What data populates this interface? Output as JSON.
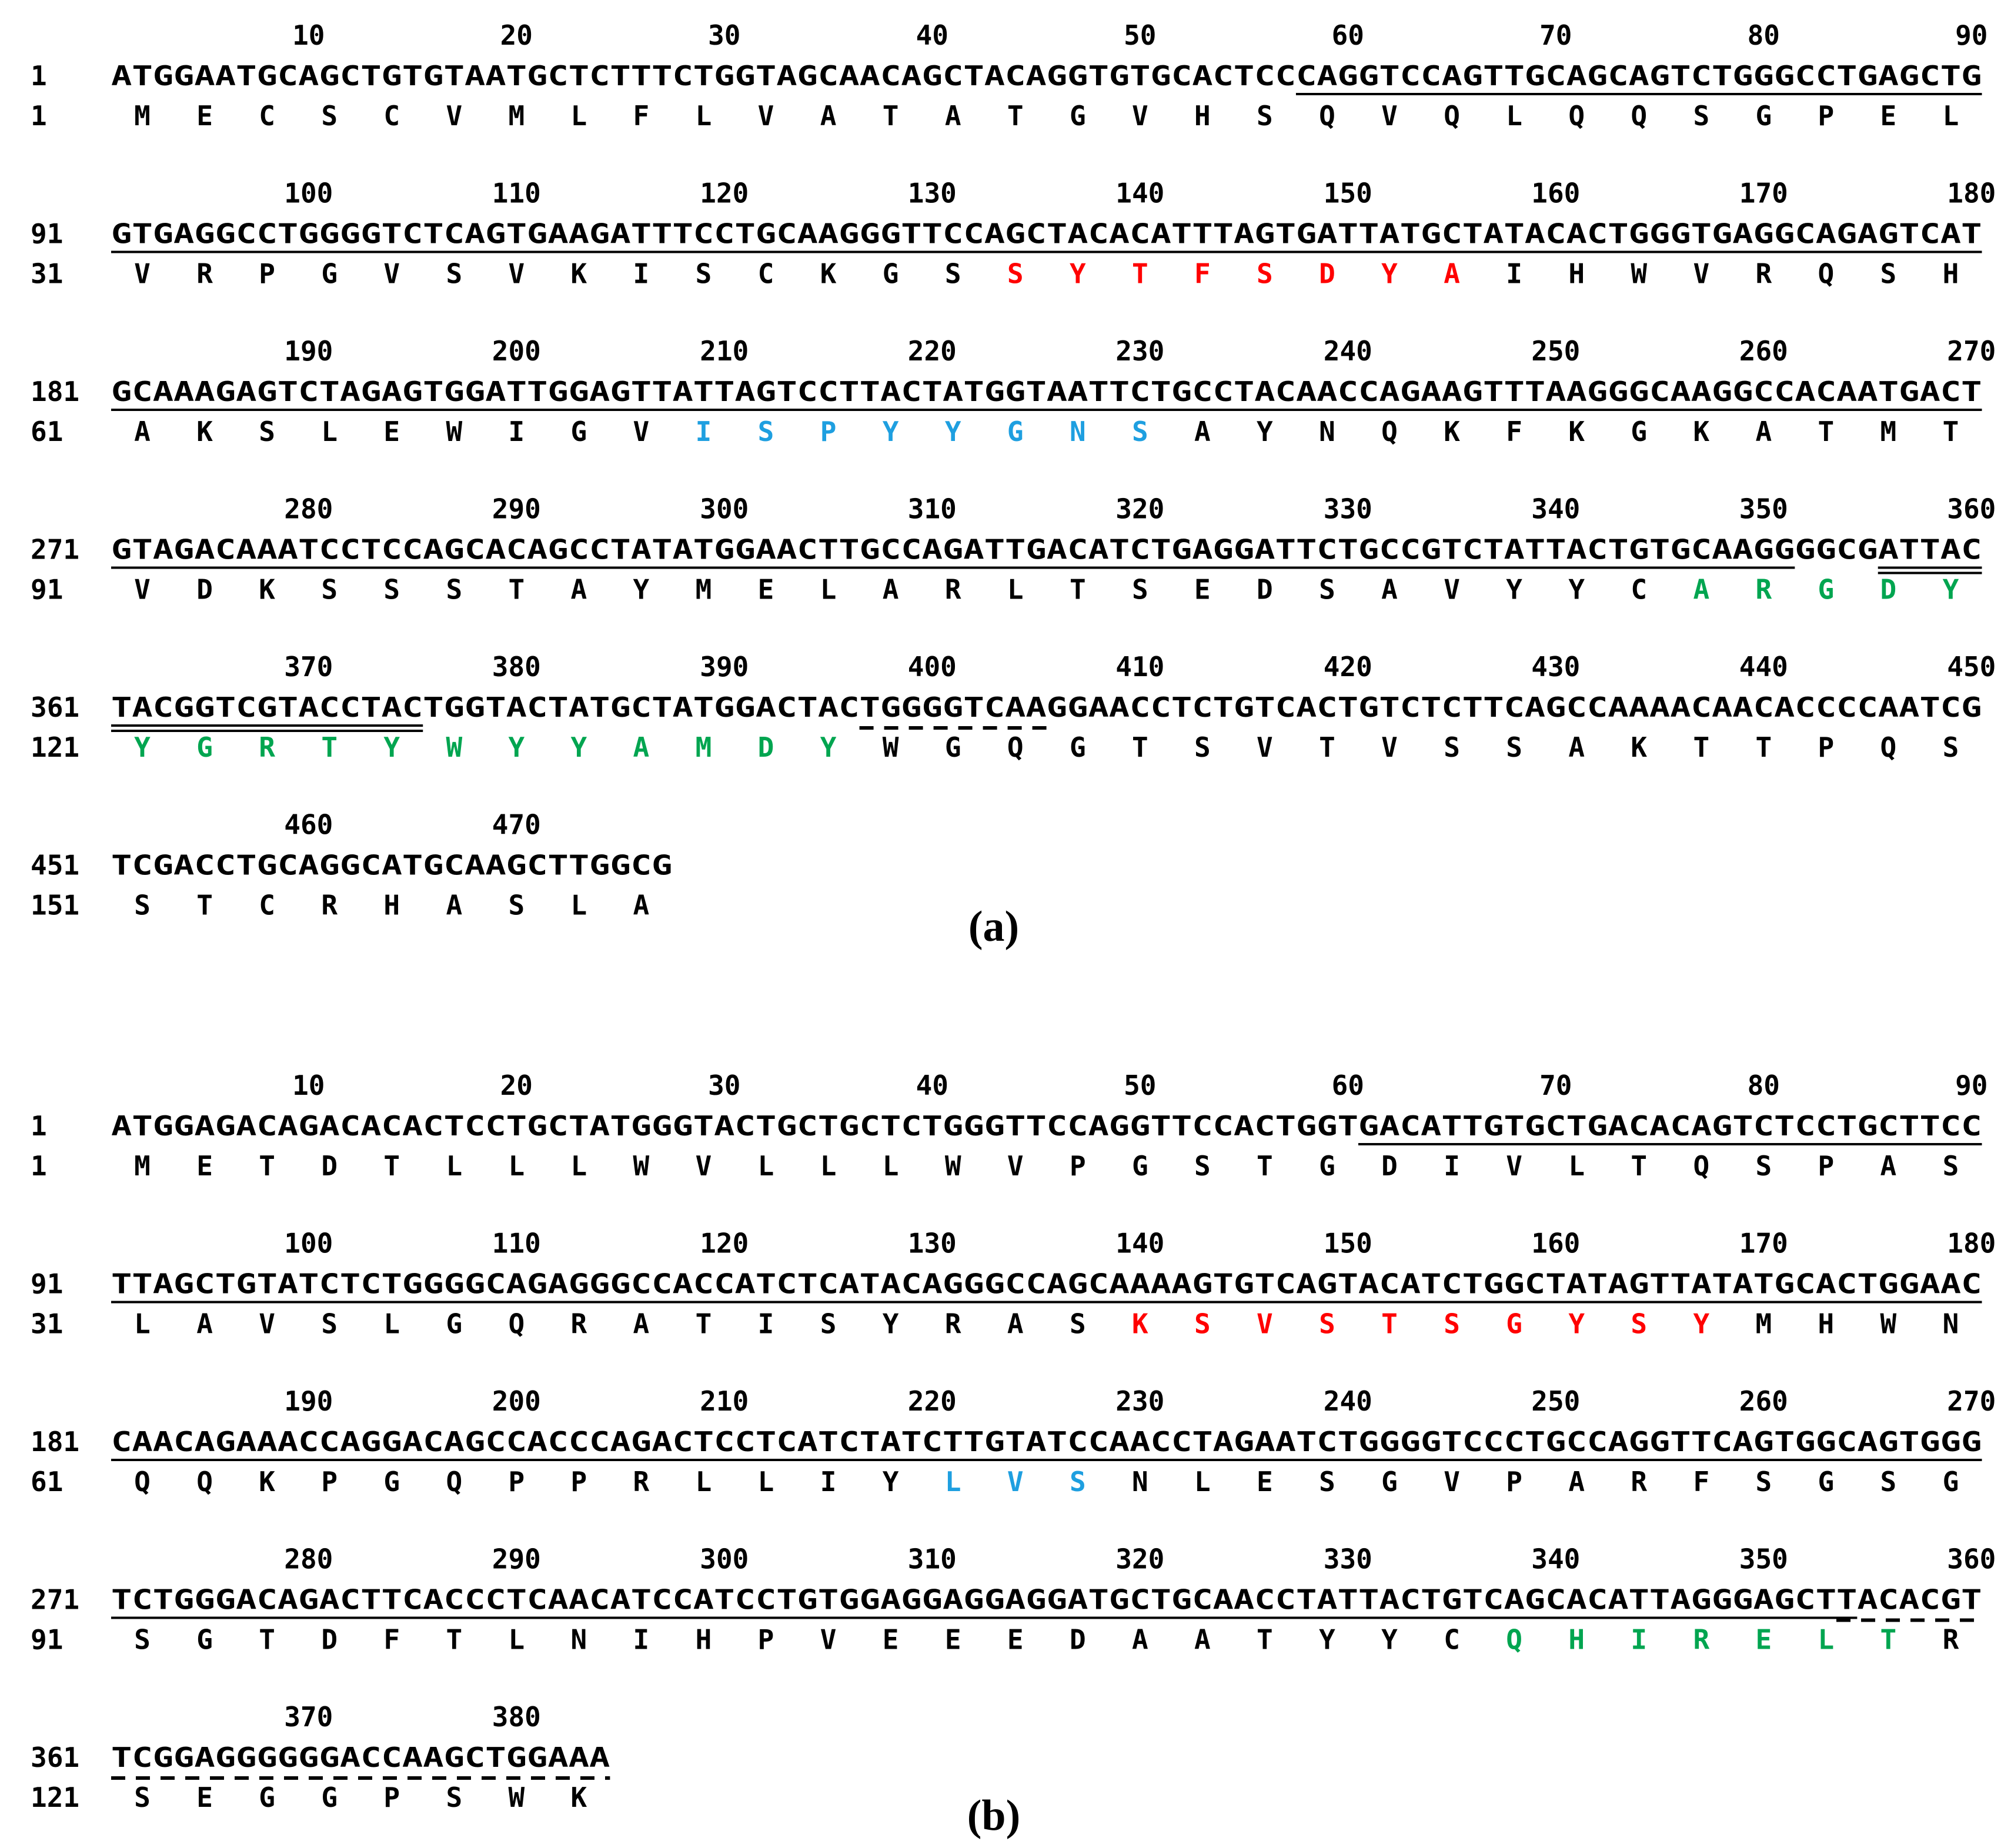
{
  "colors": {
    "default": "#000000",
    "cdr1": "#ff0000",
    "cdr2": "#1e9fe0",
    "cdr3": "#00a550"
  },
  "panels": [
    {
      "label": "(a)",
      "ticks": [
        [
          10,
          20,
          30,
          40,
          50,
          60,
          70,
          80,
          90
        ],
        [
          100,
          110,
          120,
          130,
          140,
          150,
          160,
          170,
          180
        ],
        [
          190,
          200,
          210,
          220,
          230,
          240,
          250,
          260,
          270
        ],
        [
          280,
          290,
          300,
          310,
          320,
          330,
          340,
          350,
          360
        ],
        [
          370,
          380,
          390,
          400,
          410,
          420,
          430,
          440,
          450
        ],
        [
          460,
          470
        ]
      ],
      "rows": [
        {
          "nt_index": "1",
          "aa_index": "1",
          "nt": "ATGGAATGCAGCTGTGTAATGCTCTTTCTGGTAGCAACAGCTACAGGTGTGCACTCCCAGGTCCAGTTGCAGCAGTCTGGGCCTGAGCTG",
          "aa": [
            "M",
            "E",
            "C",
            "S",
            "C",
            "V",
            "M",
            "L",
            "F",
            "L",
            "V",
            "A",
            "T",
            "A",
            "T",
            "G",
            "V",
            "H",
            "S",
            "Q",
            "V",
            "Q",
            "L",
            "Q",
            "Q",
            "S",
            "G",
            "P",
            "E",
            "L"
          ],
          "aa_colors": [
            "default",
            "default",
            "default",
            "default",
            "default",
            "default",
            "default",
            "default",
            "default",
            "default",
            "default",
            "default",
            "default",
            "default",
            "default",
            "default",
            "default",
            "default",
            "default",
            "default",
            "default",
            "default",
            "default",
            "default",
            "default",
            "default",
            "default",
            "default",
            "default",
            "default"
          ],
          "underlines": [
            {
              "start": 58,
              "end": 90,
              "style": "solid"
            }
          ]
        },
        {
          "nt_index": "91",
          "aa_index": "31",
          "nt": "GTGAGGCCTGGGGTCTCAGTGAAGATTTCCTGCAAGGGTTCCAGCTACACATTTAGTGATTATGCTATACACTGGGTGAGGCAGAGTCAT",
          "aa": [
            "V",
            "R",
            "P",
            "G",
            "V",
            "S",
            "V",
            "K",
            "I",
            "S",
            "C",
            "K",
            "G",
            "S",
            "S",
            "Y",
            "T",
            "F",
            "S",
            "D",
            "Y",
            "A",
            "I",
            "H",
            "W",
            "V",
            "R",
            "Q",
            "S",
            "H"
          ],
          "aa_colors": [
            "default",
            "default",
            "default",
            "default",
            "default",
            "default",
            "default",
            "default",
            "default",
            "default",
            "default",
            "default",
            "default",
            "default",
            "cdr1",
            "cdr1",
            "cdr1",
            "cdr1",
            "cdr1",
            "cdr1",
            "cdr1",
            "cdr1",
            "default",
            "default",
            "default",
            "default",
            "default",
            "default",
            "default",
            "default"
          ],
          "underlines": [
            {
              "start": 1,
              "end": 90,
              "style": "solid"
            }
          ]
        },
        {
          "nt_index": "181",
          "aa_index": "61",
          "nt": "GCAAAGAGTCTAGAGTGGATTGGAGTTATTAGTCCTTACTATGGTAATTCTGCCTACAACCAGAAGTTTAAGGGCAAGGCCACAATGACT",
          "aa": [
            "A",
            "K",
            "S",
            "L",
            "E",
            "W",
            "I",
            "G",
            "V",
            "I",
            "S",
            "P",
            "Y",
            "Y",
            "G",
            "N",
            "S",
            "A",
            "Y",
            "N",
            "Q",
            "K",
            "F",
            "K",
            "G",
            "K",
            "A",
            "T",
            "M",
            "T"
          ],
          "aa_colors": [
            "default",
            "default",
            "default",
            "default",
            "default",
            "default",
            "default",
            "default",
            "default",
            "cdr2",
            "cdr2",
            "cdr2",
            "cdr2",
            "cdr2",
            "cdr2",
            "cdr2",
            "cdr2",
            "default",
            "default",
            "default",
            "default",
            "default",
            "default",
            "default",
            "default",
            "default",
            "default",
            "default",
            "default",
            "default"
          ],
          "underlines": [
            {
              "start": 1,
              "end": 90,
              "style": "solid"
            }
          ]
        },
        {
          "nt_index": "271",
          "aa_index": "91",
          "nt": "GTAGACAAATCCTCCAGCACAGCCTATATGGAACTTGCCAGATTGACATCTGAGGATTCTGCCGTCTATTACTGTGCAAGGGGCGATTAC",
          "aa": [
            "V",
            "D",
            "K",
            "S",
            "S",
            "S",
            "T",
            "A",
            "Y",
            "M",
            "E",
            "L",
            "A",
            "R",
            "L",
            "T",
            "S",
            "E",
            "D",
            "S",
            "A",
            "V",
            "Y",
            "Y",
            "C",
            "A",
            "R",
            "G",
            "D",
            "Y"
          ],
          "aa_colors": [
            "default",
            "default",
            "default",
            "default",
            "default",
            "default",
            "default",
            "default",
            "default",
            "default",
            "default",
            "default",
            "default",
            "default",
            "default",
            "default",
            "default",
            "default",
            "default",
            "default",
            "default",
            "default",
            "default",
            "default",
            "default",
            "cdr3",
            "cdr3",
            "cdr3",
            "cdr3",
            "cdr3"
          ],
          "underlines": [
            {
              "start": 1,
              "end": 81,
              "style": "solid"
            },
            {
              "start": 86,
              "end": 90,
              "style": "double"
            }
          ]
        },
        {
          "nt_index": "361",
          "aa_index": "121",
          "nt": "TACGGTCGTACCTACTGGTACTATGCTATGGACTACTGGGGTCAAGGAACCTCTGTCACTGTCTCTTCAGCCAAAACAACACCCCAATCG",
          "aa": [
            "Y",
            "G",
            "R",
            "T",
            "Y",
            "W",
            "Y",
            "Y",
            "A",
            "M",
            "D",
            "Y",
            "W",
            "G",
            "Q",
            "G",
            "T",
            "S",
            "V",
            "T",
            "V",
            "S",
            "S",
            "A",
            "K",
            "T",
            "T",
            "P",
            "Q",
            "S"
          ],
          "aa_colors": [
            "cdr3",
            "cdr3",
            "cdr3",
            "cdr3",
            "cdr3",
            "cdr3",
            "cdr3",
            "cdr3",
            "cdr3",
            "cdr3",
            "cdr3",
            "cdr3",
            "default",
            "default",
            "default",
            "default",
            "default",
            "default",
            "default",
            "default",
            "default",
            "default",
            "default",
            "default",
            "default",
            "default",
            "default",
            "default",
            "default",
            "default"
          ],
          "underlines": [
            {
              "start": 1,
              "end": 15,
              "style": "double"
            },
            {
              "start": 37,
              "end": 45,
              "style": "dashed"
            }
          ]
        },
        {
          "nt_index": "451",
          "aa_index": "151",
          "nt": "TCGACCTGCAGGCATGCAAGCTTGGCG",
          "aa": [
            "S",
            "T",
            "C",
            "R",
            "H",
            "A",
            "S",
            "L",
            "A"
          ],
          "aa_colors": [
            "default",
            "default",
            "default",
            "default",
            "default",
            "default",
            "default",
            "default",
            "default"
          ],
          "underlines": []
        }
      ]
    },
    {
      "label": "(b)",
      "ticks": [
        [
          10,
          20,
          30,
          40,
          50,
          60,
          70,
          80,
          90
        ],
        [
          100,
          110,
          120,
          130,
          140,
          150,
          160,
          170,
          180
        ],
        [
          190,
          200,
          210,
          220,
          230,
          240,
          250,
          260,
          270
        ],
        [
          280,
          290,
          300,
          310,
          320,
          330,
          340,
          350,
          360
        ],
        [
          370,
          380
        ]
      ],
      "rows": [
        {
          "nt_index": "1",
          "aa_index": "1",
          "nt": "ATGGAGACAGACACACTCCTGCTATGGGTACTGCTGCTCTGGGTTCCAGGTTCCACTGGTGACATTGTGCTGACACAGTCTCCTGCTTCC",
          "aa": [
            "M",
            "E",
            "T",
            "D",
            "T",
            "L",
            "L",
            "L",
            "W",
            "V",
            "L",
            "L",
            "L",
            "W",
            "V",
            "P",
            "G",
            "S",
            "T",
            "G",
            "D",
            "I",
            "V",
            "L",
            "T",
            "Q",
            "S",
            "P",
            "A",
            "S"
          ],
          "aa_colors": [
            "default",
            "default",
            "default",
            "default",
            "default",
            "default",
            "default",
            "default",
            "default",
            "default",
            "default",
            "default",
            "default",
            "default",
            "default",
            "default",
            "default",
            "default",
            "default",
            "default",
            "default",
            "default",
            "default",
            "default",
            "default",
            "default",
            "default",
            "default",
            "default",
            "default"
          ],
          "underlines": [
            {
              "start": 61,
              "end": 90,
              "style": "solid"
            }
          ]
        },
        {
          "nt_index": "91",
          "aa_index": "31",
          "nt": "TTAGCTGTATCTCTGGGGCAGAGGGCCACCATCTCATACAGGGCCAGCAAAAGTGTCAGTACATCTGGCTATAGTTATATGCACTGGAAC",
          "aa": [
            "L",
            "A",
            "V",
            "S",
            "L",
            "G",
            "Q",
            "R",
            "A",
            "T",
            "I",
            "S",
            "Y",
            "R",
            "A",
            "S",
            "K",
            "S",
            "V",
            "S",
            "T",
            "S",
            "G",
            "Y",
            "S",
            "Y",
            "M",
            "H",
            "W",
            "N"
          ],
          "aa_colors": [
            "default",
            "default",
            "default",
            "default",
            "default",
            "default",
            "default",
            "default",
            "default",
            "default",
            "default",
            "default",
            "default",
            "default",
            "default",
            "default",
            "cdr1",
            "cdr1",
            "cdr1",
            "cdr1",
            "cdr1",
            "cdr1",
            "cdr1",
            "cdr1",
            "cdr1",
            "cdr1",
            "default",
            "default",
            "default",
            "default"
          ],
          "underlines": [
            {
              "start": 1,
              "end": 90,
              "style": "solid"
            }
          ]
        },
        {
          "nt_index": "181",
          "aa_index": "61",
          "nt": "CAACAGAAACCAGGACAGCCACCCAGACTCCTCATCTATCTTGTATCCAACCTAGAATCTGGGGTCCCTGCCAGGTTCAGTGGCAGTGGG",
          "aa": [
            "Q",
            "Q",
            "K",
            "P",
            "G",
            "Q",
            "P",
            "P",
            "R",
            "L",
            "L",
            "I",
            "Y",
            "L",
            "V",
            "S",
            "N",
            "L",
            "E",
            "S",
            "G",
            "V",
            "P",
            "A",
            "R",
            "F",
            "S",
            "G",
            "S",
            "G"
          ],
          "aa_colors": [
            "default",
            "default",
            "default",
            "default",
            "default",
            "default",
            "default",
            "default",
            "default",
            "default",
            "default",
            "default",
            "default",
            "cdr2",
            "cdr2",
            "cdr2",
            "default",
            "default",
            "default",
            "default",
            "default",
            "default",
            "default",
            "default",
            "default",
            "default",
            "default",
            "default",
            "default",
            "default"
          ],
          "underlines": [
            {
              "start": 1,
              "end": 90,
              "style": "solid"
            }
          ]
        },
        {
          "nt_index": "271",
          "aa_index": "91",
          "nt": "TCTGGGACAGACTTCACCCTCAACATCCATCCTGTGGAGGAGGAGGATGCTGCAACCTATTACTGTCAGCACATTAGGGAGCTTACACGT",
          "aa": [
            "S",
            "G",
            "T",
            "D",
            "F",
            "T",
            "L",
            "N",
            "I",
            "H",
            "P",
            "V",
            "E",
            "E",
            "E",
            "D",
            "A",
            "A",
            "T",
            "Y",
            "Y",
            "C",
            "Q",
            "H",
            "I",
            "R",
            "E",
            "L",
            "T",
            "R"
          ],
          "aa_colors": [
            "default",
            "default",
            "default",
            "default",
            "default",
            "default",
            "default",
            "default",
            "default",
            "default",
            "default",
            "default",
            "default",
            "default",
            "default",
            "default",
            "default",
            "default",
            "default",
            "default",
            "default",
            "default",
            "cdr3",
            "cdr3",
            "cdr3",
            "cdr3",
            "cdr3",
            "cdr3",
            "cdr3",
            "default"
          ],
          "underlines": [
            {
              "start": 1,
              "end": 84,
              "style": "solid"
            },
            {
              "start": 84,
              "end": 90,
              "style": "dashed"
            }
          ]
        },
        {
          "nt_index": "361",
          "aa_index": "121",
          "nt": "TCGGAGGGGGGACCAAGCTGGAAA",
          "aa": [
            "S",
            "E",
            "G",
            "G",
            "P",
            "S",
            "W",
            "K"
          ],
          "aa_colors": [
            "default",
            "default",
            "default",
            "default",
            "default",
            "default",
            "default",
            "default"
          ],
          "underlines": [
            {
              "start": 1,
              "end": 24,
              "style": "dashed"
            }
          ]
        }
      ]
    }
  ]
}
